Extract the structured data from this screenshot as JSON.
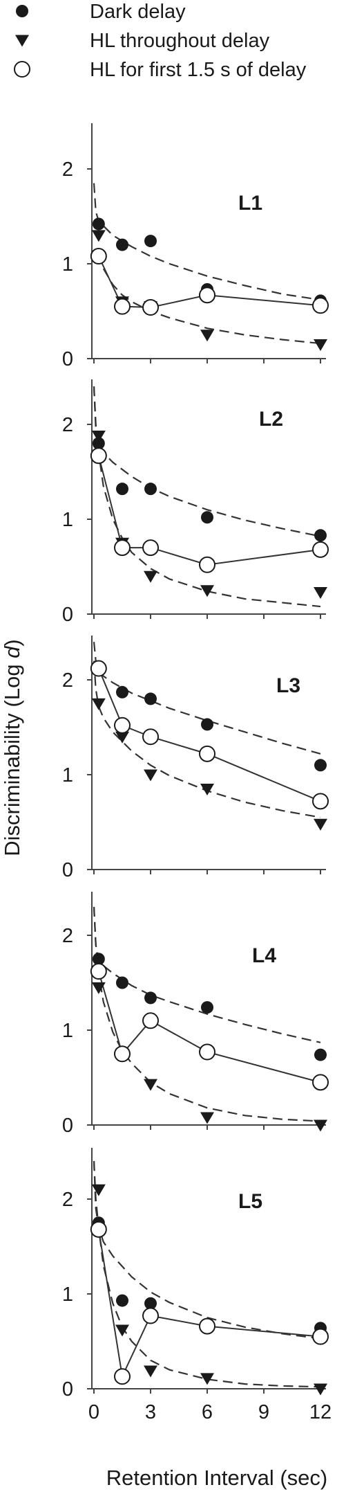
{
  "chart_data": {
    "type": "scatter",
    "legend": {
      "placement": "top-left",
      "entries": [
        {
          "label": "Dark delay",
          "marker": "filled-circle"
        },
        {
          "label": "HL throughout delay",
          "marker": "filled-triangle-down"
        },
        {
          "label": "HL for first 1.5 s of delay",
          "marker": "open-circle"
        }
      ]
    },
    "ylabel_main": "Discriminability (Log ",
    "ylabel_italic": "d",
    "ylabel_close": ")",
    "xlabel": "Retention Interval (sec)",
    "xticks": [
      0,
      3,
      6,
      9,
      12
    ],
    "xlim": [
      -0.4,
      13
    ],
    "yticks": [
      0,
      1,
      2
    ],
    "ylim": [
      0,
      2.4
    ],
    "grid": false,
    "colors": {
      "markers": "#1a1a1a",
      "lines": "#333333",
      "open_fill": "#ffffff"
    },
    "panels": [
      {
        "label": "L1",
        "series": [
          {
            "key": "dark",
            "marker": "filled-circle",
            "x": [
              0.25,
              1.5,
              3,
              6,
              12
            ],
            "y": [
              1.42,
              1.2,
              1.24,
              0.73,
              0.61
            ]
          },
          {
            "key": "hl_throughout",
            "marker": "filled-triangle-down",
            "x": [
              0.25,
              1.5,
              3,
              6,
              12
            ],
            "y": [
              1.3,
              0.6,
              0.55,
              0.25,
              0.15
            ]
          },
          {
            "key": "hl_first",
            "marker": "open-circle",
            "connected": true,
            "x": [
              0.25,
              1.5,
              3,
              6,
              12
            ],
            "y": [
              1.08,
              0.55,
              0.54,
              0.67,
              0.56
            ]
          }
        ],
        "fits": [
          {
            "x": [
              0,
              0.1,
              0.25,
              0.5,
              1,
              2,
              3,
              4,
              6,
              8,
              10,
              12
            ],
            "y": [
              1.85,
              1.55,
              1.45,
              1.4,
              1.3,
              1.18,
              1.08,
              1.0,
              0.87,
              0.77,
              0.68,
              0.62
            ]
          },
          {
            "x": [
              0.25,
              0.5,
              1,
              1.5,
              2,
              3,
              4,
              6,
              8,
              10,
              12
            ],
            "y": [
              1.1,
              0.95,
              0.78,
              0.67,
              0.6,
              0.5,
              0.43,
              0.32,
              0.25,
              0.2,
              0.16
            ]
          }
        ]
      },
      {
        "label": "L2",
        "series": [
          {
            "key": "dark",
            "marker": "filled-circle",
            "x": [
              0.25,
              1.5,
              3,
              6,
              12
            ],
            "y": [
              1.8,
              1.32,
              1.32,
              1.02,
              0.83
            ]
          },
          {
            "key": "hl_throughout",
            "marker": "filled-triangle-down",
            "x": [
              0.25,
              1.5,
              3,
              6,
              12
            ],
            "y": [
              1.88,
              0.75,
              0.4,
              0.25,
              0.23
            ]
          },
          {
            "key": "hl_first",
            "marker": "open-circle",
            "connected": true,
            "x": [
              0.25,
              1.5,
              3,
              6,
              12
            ],
            "y": [
              1.67,
              0.7,
              0.7,
              0.52,
              0.68
            ]
          }
        ],
        "fits": [
          {
            "x": [
              0,
              0.1,
              0.25,
              0.5,
              1,
              2,
              3,
              4,
              6,
              8,
              10,
              12
            ],
            "y": [
              2.4,
              1.95,
              1.78,
              1.7,
              1.6,
              1.45,
              1.33,
              1.24,
              1.1,
              0.99,
              0.9,
              0.82
            ]
          },
          {
            "x": [
              0,
              0.1,
              0.25,
              0.5,
              1,
              1.5,
              2,
              3,
              4,
              6,
              8,
              10,
              12
            ],
            "y": [
              2.4,
              2.0,
              1.7,
              1.35,
              1.0,
              0.8,
              0.65,
              0.48,
              0.37,
              0.24,
              0.16,
              0.12,
              0.08
            ]
          }
        ]
      },
      {
        "label": "L3",
        "series": [
          {
            "key": "dark",
            "marker": "filled-circle",
            "x": [
              0.25,
              1.5,
              3,
              6,
              12
            ],
            "y": [
              2.12,
              1.87,
              1.8,
              1.53,
              1.1
            ]
          },
          {
            "key": "hl_throughout",
            "marker": "filled-triangle-down",
            "x": [
              0.25,
              1.5,
              3,
              6,
              12
            ],
            "y": [
              1.75,
              1.4,
              1.0,
              0.85,
              0.48
            ]
          },
          {
            "key": "hl_first",
            "marker": "open-circle",
            "connected": true,
            "x": [
              0.25,
              1.5,
              3,
              6,
              12
            ],
            "y": [
              2.12,
              1.52,
              1.4,
              1.22,
              0.72
            ]
          }
        ],
        "fits": [
          {
            "x": [
              0,
              0.1,
              0.25,
              0.5,
              1,
              2,
              3,
              4,
              6,
              8,
              10,
              12
            ],
            "y": [
              2.4,
              2.2,
              2.1,
              2.04,
              1.97,
              1.86,
              1.78,
              1.7,
              1.57,
              1.45,
              1.33,
              1.22
            ]
          },
          {
            "x": [
              0,
              0.1,
              0.25,
              0.5,
              1,
              2,
              3,
              4,
              6,
              8,
              10,
              12
            ],
            "y": [
              2.2,
              1.9,
              1.72,
              1.6,
              1.45,
              1.25,
              1.1,
              0.99,
              0.83,
              0.71,
              0.62,
              0.55
            ]
          }
        ]
      },
      {
        "label": "L4",
        "series": [
          {
            "key": "dark",
            "marker": "filled-circle",
            "x": [
              0.25,
              1.5,
              3,
              6,
              12
            ],
            "y": [
              1.75,
              1.5,
              1.34,
              1.24,
              0.74
            ]
          },
          {
            "key": "hl_throughout",
            "marker": "filled-triangle-down",
            "x": [
              0.25,
              1.5,
              3,
              6,
              12
            ],
            "y": [
              1.45,
              0.75,
              0.43,
              0.08,
              0.0
            ]
          },
          {
            "key": "hl_first",
            "marker": "open-circle",
            "connected": true,
            "x": [
              0.25,
              1.5,
              3,
              6,
              12
            ],
            "y": [
              1.62,
              0.75,
              1.1,
              0.77,
              0.45
            ]
          }
        ],
        "fits": [
          {
            "x": [
              0,
              0.1,
              0.25,
              0.5,
              1,
              2,
              3,
              4,
              6,
              8,
              10,
              12
            ],
            "y": [
              2.3,
              1.9,
              1.75,
              1.68,
              1.6,
              1.47,
              1.37,
              1.3,
              1.17,
              1.06,
              0.96,
              0.87
            ]
          },
          {
            "x": [
              0,
              0.1,
              0.25,
              0.5,
              1,
              1.5,
              2,
              3,
              4,
              6,
              8,
              10,
              12
            ],
            "y": [
              2.3,
              1.9,
              1.6,
              1.3,
              0.98,
              0.78,
              0.65,
              0.45,
              0.33,
              0.18,
              0.1,
              0.06,
              0.04
            ]
          }
        ]
      },
      {
        "label": "L5",
        "series": [
          {
            "key": "dark",
            "marker": "filled-circle",
            "x": [
              0.25,
              1.5,
              3,
              6,
              12
            ],
            "y": [
              1.75,
              0.93,
              0.9,
              0.66,
              0.64
            ]
          },
          {
            "key": "hl_throughout",
            "marker": "filled-triangle-down",
            "x": [
              0.25,
              1.5,
              3,
              6,
              12
            ],
            "y": [
              2.1,
              0.62,
              0.19,
              0.11,
              0.0
            ]
          },
          {
            "key": "hl_first",
            "marker": "open-circle",
            "connected": true,
            "x": [
              0.25,
              1.5,
              3,
              6,
              12
            ],
            "y": [
              1.68,
              0.13,
              0.77,
              0.66,
              0.55
            ]
          }
        ],
        "fits": [
          {
            "x": [
              0,
              0.1,
              0.25,
              0.5,
              1,
              2,
              3,
              4,
              6,
              8,
              10,
              12
            ],
            "y": [
              2.4,
              1.9,
              1.7,
              1.55,
              1.4,
              1.18,
              1.02,
              0.91,
              0.75,
              0.65,
              0.58,
              0.53
            ]
          },
          {
            "x": [
              0,
              0.1,
              0.25,
              0.5,
              1,
              1.5,
              2,
              3,
              4,
              6,
              8,
              10,
              12
            ],
            "y": [
              2.4,
              2.0,
              1.7,
              1.3,
              0.9,
              0.65,
              0.5,
              0.3,
              0.2,
              0.1,
              0.05,
              0.03,
              0.02
            ]
          }
        ]
      }
    ]
  }
}
